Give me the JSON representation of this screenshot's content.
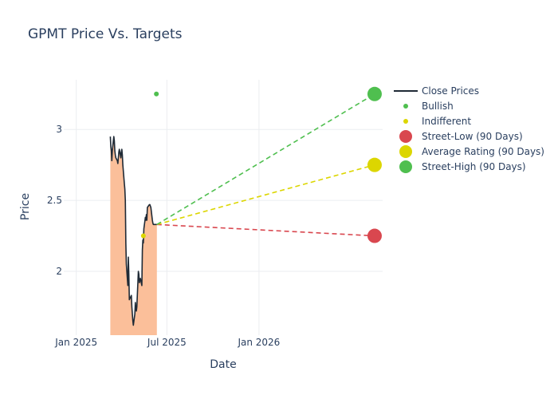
{
  "chart_data": {
    "type": "line",
    "title": "GPMT Price Vs. Targets",
    "xlabel": "Date",
    "ylabel": "Price",
    "x_range": [
      "2024-12-07",
      "2026-09-05"
    ],
    "ylim": [
      1.55,
      3.35
    ],
    "x_ticks": [
      {
        "date": "2025-01-01",
        "label": "Jan 2025"
      },
      {
        "date": "2025-07-01",
        "label": "Jul 2025"
      },
      {
        "date": "2026-01-01",
        "label": "Jan 2026"
      }
    ],
    "y_ticks": [
      {
        "value": 2,
        "label": "2"
      },
      {
        "value": 2.5,
        "label": "2.5"
      },
      {
        "value": 3,
        "label": "3"
      }
    ],
    "grid": true,
    "legend_position": "right",
    "series": [
      {
        "name": "Close Prices",
        "kind": "line-area",
        "color": "#1f2a36",
        "fill_color": "#fbbf9a",
        "x": [
          "2025-03-10",
          "2025-03-11",
          "2025-03-12",
          "2025-03-13",
          "2025-03-14",
          "2025-03-17",
          "2025-03-18",
          "2025-03-19",
          "2025-03-20",
          "2025-03-21",
          "2025-03-24",
          "2025-03-25",
          "2025-03-26",
          "2025-03-27",
          "2025-03-28",
          "2025-03-31",
          "2025-04-01",
          "2025-04-02",
          "2025-04-03",
          "2025-04-04",
          "2025-04-07",
          "2025-04-08",
          "2025-04-09",
          "2025-04-10",
          "2025-04-11",
          "2025-04-14",
          "2025-04-15",
          "2025-04-16",
          "2025-04-17",
          "2025-04-21",
          "2025-04-22",
          "2025-04-23",
          "2025-04-24",
          "2025-04-25",
          "2025-04-28",
          "2025-04-29",
          "2025-04-30",
          "2025-05-01",
          "2025-05-02",
          "2025-05-05",
          "2025-05-06",
          "2025-05-07",
          "2025-05-08",
          "2025-05-09",
          "2025-05-12",
          "2025-05-13",
          "2025-05-14",
          "2025-05-15",
          "2025-05-16",
          "2025-05-19",
          "2025-05-20",
          "2025-05-21",
          "2025-05-22",
          "2025-05-23",
          "2025-05-27",
          "2025-05-28",
          "2025-05-29",
          "2025-05-30",
          "2025-06-02",
          "2025-06-03",
          "2025-06-04",
          "2025-06-05",
          "2025-06-06",
          "2025-06-09",
          "2025-06-10",
          "2025-06-11"
        ],
        "values": [
          2.95,
          2.88,
          2.85,
          2.78,
          2.85,
          2.95,
          2.92,
          2.85,
          2.82,
          2.8,
          2.78,
          2.76,
          2.8,
          2.84,
          2.86,
          2.8,
          2.84,
          2.86,
          2.82,
          2.75,
          2.62,
          2.58,
          2.5,
          2.2,
          2.05,
          1.9,
          2.1,
          1.98,
          1.8,
          1.83,
          1.75,
          1.7,
          1.65,
          1.62,
          1.7,
          1.78,
          1.74,
          1.72,
          1.75,
          2.0,
          1.98,
          1.92,
          1.94,
          1.95,
          1.9,
          2.15,
          2.22,
          2.2,
          2.3,
          2.38,
          2.36,
          2.4,
          2.36,
          2.45,
          2.47,
          2.47,
          2.46,
          2.45,
          2.36,
          2.34,
          2.33,
          2.33,
          2.33,
          2.33,
          2.33,
          2.33
        ]
      },
      {
        "name": "Bullish",
        "kind": "marker",
        "color": "#4fbf4f",
        "points": [
          {
            "x": "2025-06-10",
            "y": 3.25
          }
        ]
      },
      {
        "name": "Indifferent",
        "kind": "marker",
        "color": "#dcd600",
        "points": [
          {
            "x": "2025-05-15",
            "y": 2.25
          }
        ]
      },
      {
        "name": "Street-Low (90 Days)",
        "kind": "target",
        "color": "#d9474f",
        "start": {
          "x": "2025-06-11",
          "y": 2.33
        },
        "end": {
          "x": "2026-08-20",
          "y": 2.25
        }
      },
      {
        "name": "Average Rating (90 Days)",
        "kind": "target",
        "color": "#dcd600",
        "start": {
          "x": "2025-06-11",
          "y": 2.33
        },
        "end": {
          "x": "2026-08-20",
          "y": 2.75
        }
      },
      {
        "name": "Street-High (90 Days)",
        "kind": "target",
        "color": "#4fbf4f",
        "start": {
          "x": "2025-06-11",
          "y": 2.33
        },
        "end": {
          "x": "2026-08-20",
          "y": 3.25
        }
      }
    ]
  }
}
